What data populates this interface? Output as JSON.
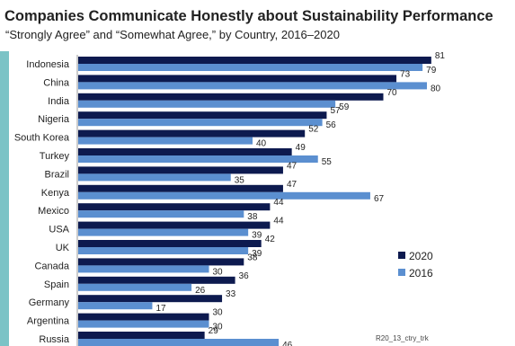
{
  "chart_data": {
    "type": "bar",
    "orientation": "horizontal",
    "title": "Companies Communicate Honestly about Sustainability Performance",
    "subtitle": "“Strongly Agree” and “Somewhat Agree,” by Country, 2016–2020",
    "categories": [
      "Indonesia",
      "China",
      "India",
      "Nigeria",
      "South Korea",
      "Turkey",
      "Brazil",
      "Kenya",
      "Mexico",
      "USA",
      "UK",
      "Canada",
      "Spain",
      "Germany",
      "Argentina",
      "Russia"
    ],
    "series": [
      {
        "name": "2020",
        "color": "#0d1a4f",
        "values": [
          81,
          73,
          70,
          57,
          52,
          49,
          47,
          47,
          44,
          44,
          42,
          38,
          36,
          33,
          30,
          29
        ]
      },
      {
        "name": "2016",
        "color": "#5b8fd0",
        "values": [
          79,
          80,
          59,
          56,
          40,
          55,
          35,
          67,
          38,
          39,
          39,
          30,
          26,
          17,
          30,
          46
        ]
      }
    ],
    "xlim": [
      0,
      100
    ],
    "legend_position": "right",
    "footnote": "R20_13_ctry_trk"
  }
}
